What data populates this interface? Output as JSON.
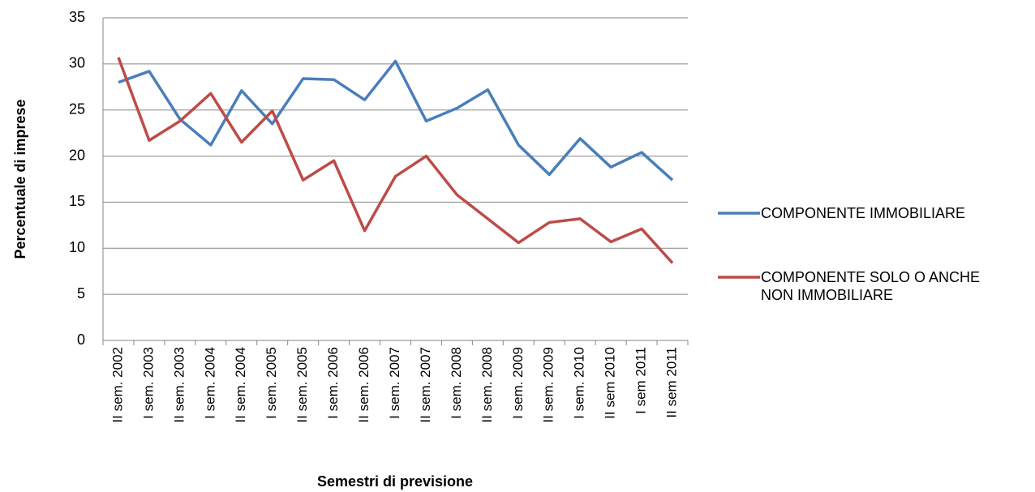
{
  "chart_data": {
    "type": "line",
    "x_label": "Semestri di previsione",
    "y_label": "Percentuale di  imprese",
    "categories": [
      "II sem. 2002",
      "I sem. 2003",
      "II sem. 2003",
      "I sem. 2004",
      "II sem. 2004",
      "I sem. 2005",
      "II sem. 2005",
      "I sem. 2006",
      "II sem. 2006",
      "I sem. 2007",
      "II sem. 2007",
      "I sem. 2008",
      "II sem. 2008",
      "I sem. 2009",
      "II sem. 2009",
      "I sem. 2010",
      "II sem 2010",
      "I sem 2011",
      "II sem 2011"
    ],
    "series": [
      {
        "name": "COMPONENTE IMMOBILIARE",
        "color": "#4a7ebb",
        "values": [
          28.0,
          29.2,
          24.0,
          21.2,
          27.1,
          23.5,
          28.4,
          28.3,
          26.1,
          30.3,
          23.8,
          25.2,
          27.2,
          21.2,
          18.0,
          21.9,
          18.8,
          20.4,
          17.4
        ]
      },
      {
        "name": "COMPONENTE SOLO O ANCHE NON IMMOBILIARE",
        "color": "#be4b48",
        "values": [
          30.7,
          21.7,
          23.8,
          26.8,
          21.5,
          24.9,
          17.4,
          19.5,
          11.9,
          17.8,
          20.0,
          15.8,
          13.2,
          10.6,
          12.8,
          13.2,
          10.7,
          12.1,
          8.4
        ]
      }
    ],
    "ylim": [
      0,
      35
    ],
    "yticks": [
      0,
      5,
      10,
      15,
      20,
      25,
      30,
      35
    ],
    "grid": true,
    "legend": "right"
  }
}
